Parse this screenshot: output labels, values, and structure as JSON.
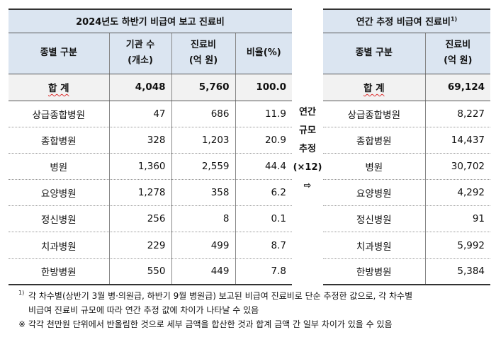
{
  "left_table": {
    "caption": "2024년도 하반기 비급여 보고 진료비",
    "headers": [
      "종별 구분",
      "기관 수\n(개소)",
      "진료비\n(억 원)",
      "비율(%)"
    ],
    "headers_lines": [
      [
        "종별 구분"
      ],
      [
        "기관 수",
        "(개소)"
      ],
      [
        "진료비",
        "(억 원)"
      ],
      [
        "비율(%)"
      ]
    ],
    "total": {
      "label": "합 계",
      "count": "4,048",
      "cost": "5,760",
      "ratio": "100.0"
    },
    "rows": [
      {
        "label": "상급종합병원",
        "count": "47",
        "cost": "686",
        "ratio": "11.9"
      },
      {
        "label": "종합병원",
        "count": "328",
        "cost": "1,203",
        "ratio": "20.9"
      },
      {
        "label": "병원",
        "count": "1,360",
        "cost": "2,559",
        "ratio": "44.4"
      },
      {
        "label": "요양병원",
        "count": "1,278",
        "cost": "358",
        "ratio": "6.2"
      },
      {
        "label": "정신병원",
        "count": "256",
        "cost": "8",
        "ratio": "0.1"
      },
      {
        "label": "치과병원",
        "count": "229",
        "cost": "499",
        "ratio": "8.7"
      },
      {
        "label": "한방병원",
        "count": "550",
        "cost": "449",
        "ratio": "7.8"
      }
    ]
  },
  "middle": {
    "lines": [
      "연간",
      "규모",
      "추정",
      "(×12)",
      "⇨"
    ]
  },
  "right_table": {
    "caption": "연간 추정 비급여 진료비",
    "caption_note": "1)",
    "headers_lines": [
      [
        "종별 구분"
      ],
      [
        "진료비",
        "(억 원)"
      ]
    ],
    "total": {
      "label": "합 계",
      "cost": "69,124"
    },
    "rows": [
      {
        "label": "상급종합병원",
        "cost": "8,227"
      },
      {
        "label": "종합병원",
        "cost": "14,437"
      },
      {
        "label": "병원",
        "cost": "30,702"
      },
      {
        "label": "요양병원",
        "cost": "4,292"
      },
      {
        "label": "정신병원",
        "cost": "91"
      },
      {
        "label": "치과병원",
        "cost": "5,992"
      },
      {
        "label": "한방병원",
        "cost": "5,384"
      }
    ]
  },
  "notes": {
    "note1_marker": "1)",
    "note1_line1": "각 차수별(상반기 3월 병·의원급, 하반기 9월 병원급) 보고된 비급여 진료비로 단순 추정한 값으로, 각 차수별",
    "note1_line2": "비급여 진료비 규모에 따라 연간 추정 값에 차이가 나타날 수 있음",
    "note2": "※ 각각 천만원 단위에서 반올림한 것으로 세부 금액을 합산한 것과 합계 금액 간 일부 차이가 있을 수 있음"
  }
}
